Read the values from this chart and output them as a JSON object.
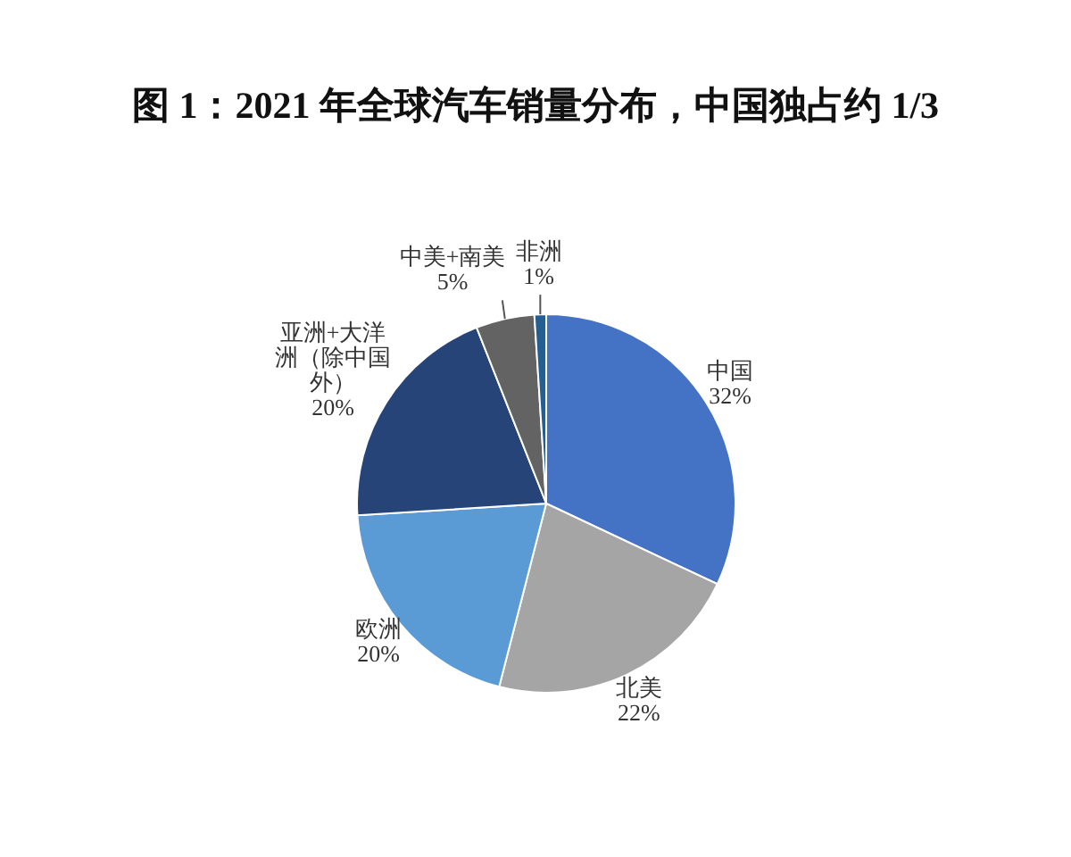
{
  "chart_data": {
    "type": "pie",
    "title": "图 1：2021 年全球汽车销量分布，中国独占约 1/3",
    "categories": [
      "中国",
      "北美",
      "欧洲",
      "亚洲+大洋洲（除中国外）",
      "中美+南美",
      "非洲"
    ],
    "values": [
      32,
      22,
      20,
      20,
      5,
      1
    ],
    "colors": [
      "#4472c4",
      "#a5a5a5",
      "#5b9bd5",
      "#264478",
      "#636363",
      "#255e91"
    ],
    "value_labels": [
      "32%",
      "22%",
      "20%",
      "20%",
      "5%",
      "1%"
    ]
  }
}
